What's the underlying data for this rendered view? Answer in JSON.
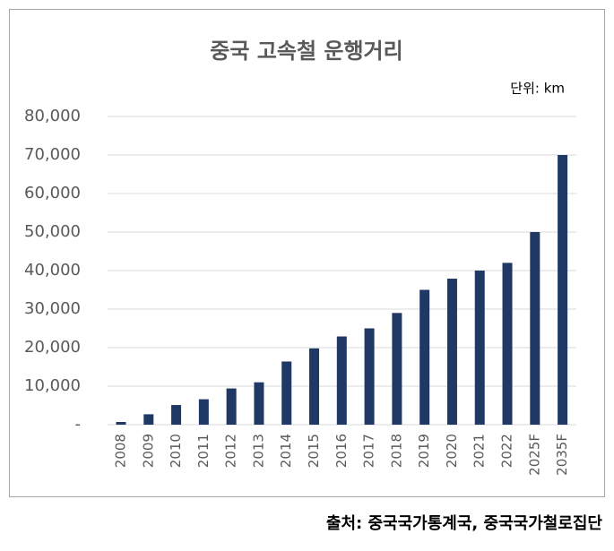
{
  "chart_data": {
    "type": "bar",
    "title": "중국 고속철 운행거리",
    "unit_label": "단위: km",
    "source": "출처: 중국국가통계국, 중국국가철로집단",
    "categories": [
      "2008",
      "2009",
      "2010",
      "2011",
      "2012",
      "2013",
      "2014",
      "2015",
      "2016",
      "2017",
      "2018",
      "2019",
      "2020",
      "2021",
      "2022",
      "2025F",
      "2035F"
    ],
    "values": [
      700,
      2700,
      5100,
      6600,
      9400,
      11000,
      16400,
      19800,
      22900,
      25000,
      29000,
      35000,
      37900,
      40000,
      42000,
      50000,
      70000
    ],
    "color": "#1f3864",
    "ylim": [
      0,
      80000
    ],
    "yticks": [
      {
        "value": 0,
        "label": "-"
      },
      {
        "value": 10000,
        "label": "10,000"
      },
      {
        "value": 20000,
        "label": "20,000"
      },
      {
        "value": 30000,
        "label": "30,000"
      },
      {
        "value": 40000,
        "label": "40,000"
      },
      {
        "value": 50000,
        "label": "50,000"
      },
      {
        "value": 60000,
        "label": "60,000"
      },
      {
        "value": 70000,
        "label": "70,000"
      },
      {
        "value": 80000,
        "label": "80,000"
      }
    ],
    "grid": true
  }
}
